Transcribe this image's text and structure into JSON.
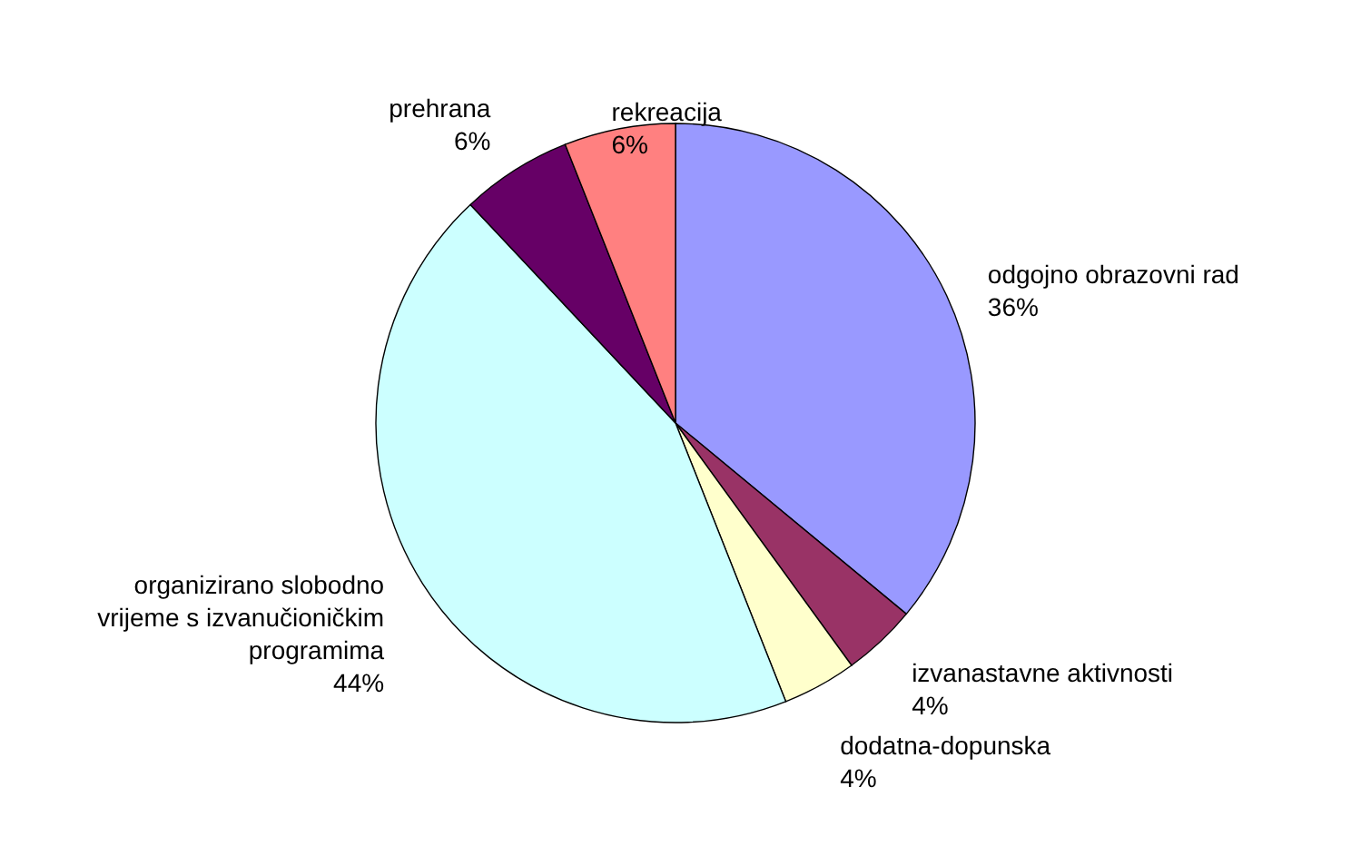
{
  "chart_data": {
    "type": "pie",
    "categories": [
      "odgojno obrazovni rad",
      "izvanastavne aktivnosti",
      "dodatna-dopunska",
      "organizirano slobodno vrijeme s izvanučioničkim programima",
      "prehrana",
      "rekreacija"
    ],
    "values": [
      36,
      4,
      4,
      44,
      6,
      6
    ],
    "colors": [
      "#9999ff",
      "#993366",
      "#ffffcc",
      "#ccffff",
      "#660066",
      "#ff8080"
    ],
    "value_labels": [
      "36%",
      "4%",
      "4%",
      "44%",
      "6%",
      "6%"
    ],
    "legend": false
  }
}
